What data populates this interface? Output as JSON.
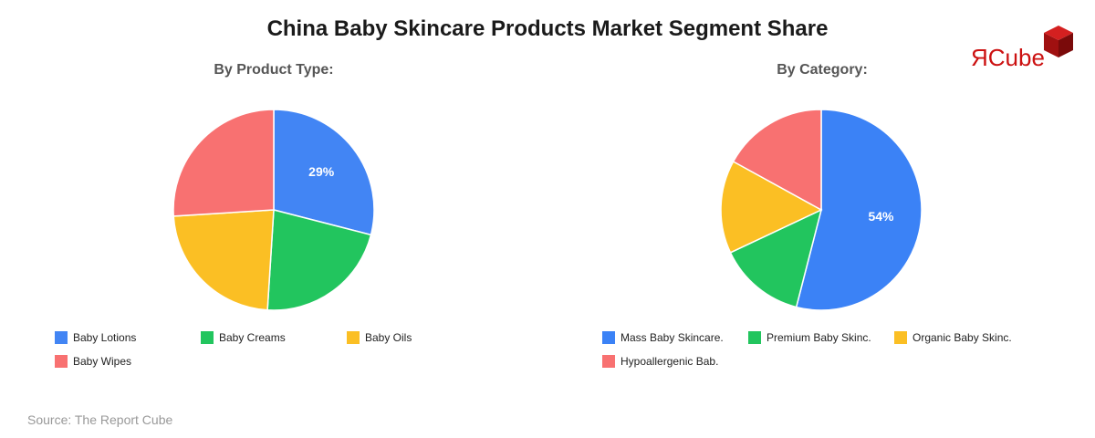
{
  "title": "China Baby Skincare Products Market Segment Share",
  "source": "Source: The Report Cube",
  "logo": {
    "mark": "Я",
    "text": "Cube"
  },
  "chart_data": [
    {
      "type": "pie",
      "title": "By Product Type:",
      "categories": [
        "Baby Lotions",
        "Baby Creams",
        "Baby Oils",
        "Baby Wipes"
      ],
      "values": [
        29,
        22,
        23,
        26
      ],
      "colors": [
        "#4285f4",
        "#22c55e",
        "#fbbf24",
        "#f87171"
      ],
      "data_labels": [
        "29%",
        "",
        "",
        ""
      ],
      "legend_position": "bottom"
    },
    {
      "type": "pie",
      "title": "By Category:",
      "categories": [
        "Mass Baby Skincare.",
        "Premium Baby Skinc.",
        "Organic Baby Skinc.",
        "Hypoallergenic Bab."
      ],
      "values": [
        54,
        14,
        15,
        17
      ],
      "colors": [
        "#3b82f6",
        "#22c55e",
        "#fbbf24",
        "#f87171"
      ],
      "data_labels": [
        "54%",
        "",
        "",
        ""
      ],
      "legend_position": "bottom"
    }
  ]
}
